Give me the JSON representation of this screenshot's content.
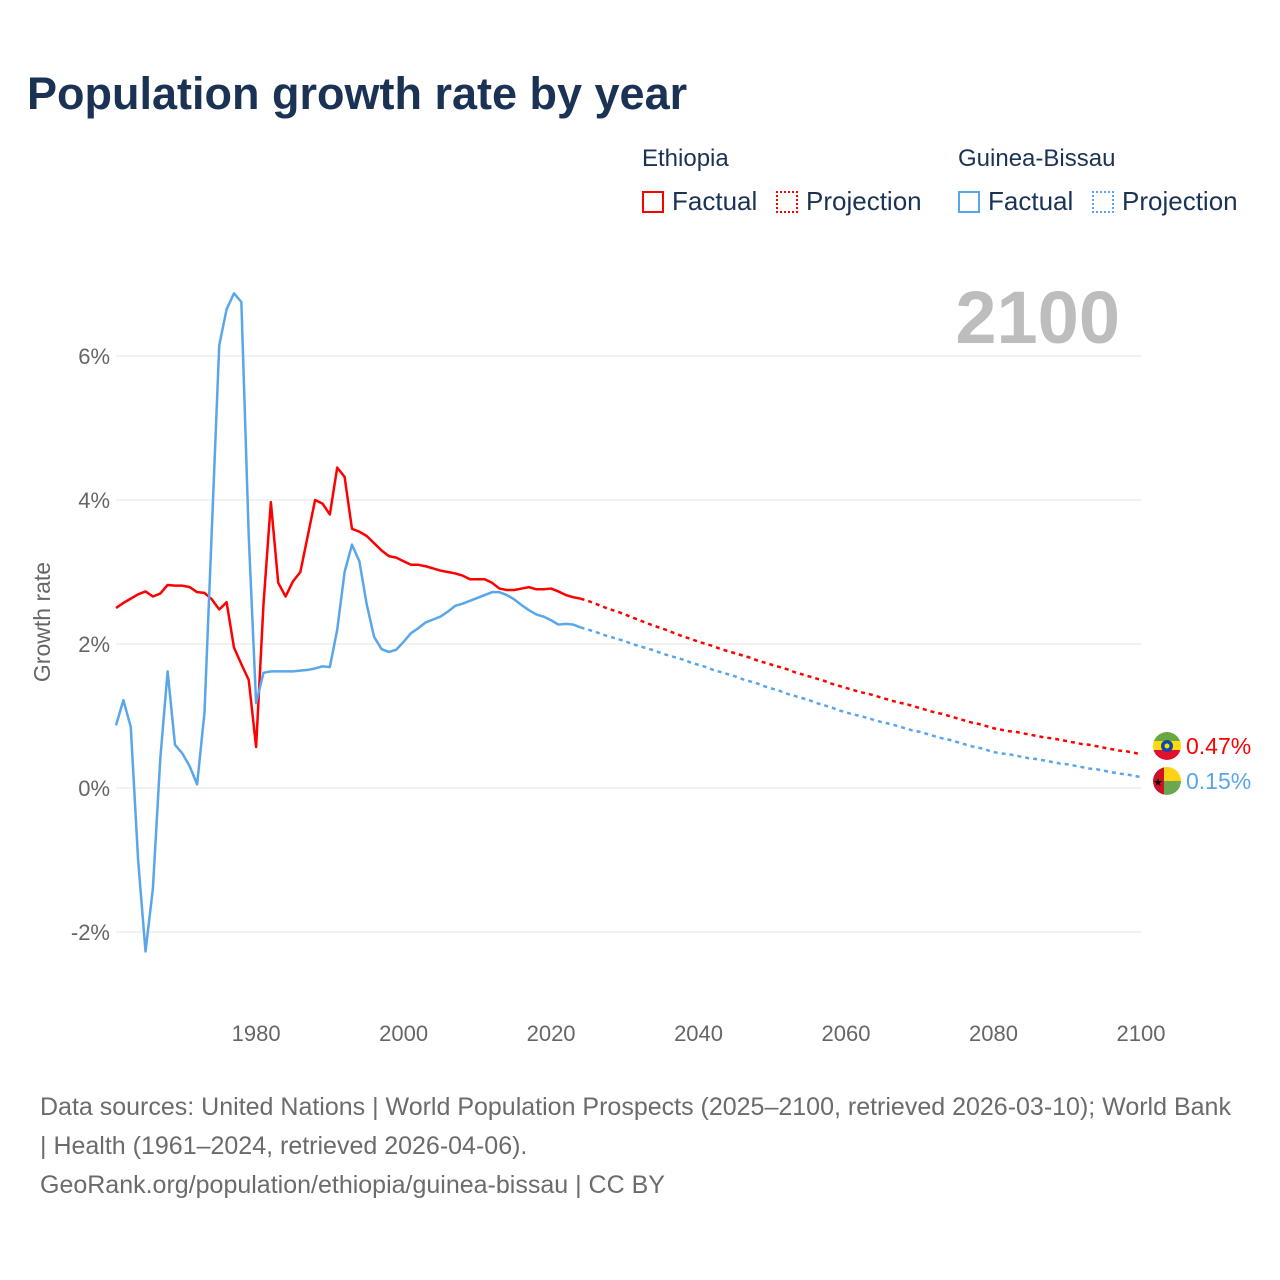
{
  "title": "Population growth rate by year",
  "legend": {
    "groups": [
      {
        "name": "Ethiopia",
        "color": "#ff0000",
        "factual": "Factual",
        "projection": "Projection"
      },
      {
        "name": "Guinea-Bissau",
        "color": "#5aa6ea",
        "factual": "Factual",
        "projection": "Projection"
      }
    ]
  },
  "current_year": "2100",
  "end_labels": {
    "ethiopia": "0.47%",
    "guinea_bissau": "0.15%"
  },
  "source": {
    "line1": "Data sources: United Nations | World Population Prospects (2025–2100, retrieved 2026-03-10); World Bank | Health (1961–2024, retrieved 2026-04-06).",
    "line2": "GeoRank.org/population/ethiopia/guinea-bissau | CC BY"
  },
  "chart_data": {
    "type": "line",
    "title": "Population growth rate by year",
    "ylabel": "Growth rate",
    "xlabel": "",
    "xlim": [
      1961,
      2100
    ],
    "ylim": [
      -2.9,
      7
    ],
    "y_ticks": [
      -2,
      0,
      2,
      4,
      6
    ],
    "y_tick_labels": [
      "-2%",
      "0%",
      "2%",
      "4%",
      "6%"
    ],
    "x_ticks": [
      1980,
      2000,
      2020,
      2040,
      2060,
      2080,
      2100
    ],
    "x_tick_labels": [
      "1980",
      "2000",
      "2020",
      "2040",
      "2060",
      "2080",
      "2100"
    ],
    "grid": true,
    "legend_position": "top-right",
    "series": [
      {
        "name": "Ethiopia Factual",
        "color": "#ff0000",
        "dashed": false,
        "start": 1961,
        "values": [
          2.5,
          2.57,
          2.63,
          2.69,
          2.73,
          2.66,
          2.7,
          2.82,
          2.81,
          2.81,
          2.79,
          2.72,
          2.71,
          2.62,
          2.48,
          2.58,
          1.95,
          1.72,
          1.5,
          0.57,
          2.55,
          3.97,
          2.85,
          2.66,
          2.87,
          3.0,
          3.5,
          4.0,
          3.95,
          3.8,
          4.45,
          4.32,
          3.6,
          3.56,
          3.5,
          3.4,
          3.3,
          3.22,
          3.2,
          3.15,
          3.1,
          3.1,
          3.08,
          3.05,
          3.02,
          3.0,
          2.98,
          2.95,
          2.9,
          2.9,
          2.9,
          2.85,
          2.77,
          2.75,
          2.75,
          2.77,
          2.79,
          2.76,
          2.76,
          2.77,
          2.73,
          2.68,
          2.65,
          2.63
        ]
      },
      {
        "name": "Ethiopia Projection",
        "color": "#ff0000",
        "dashed": true,
        "start": 2025,
        "values": [
          2.6,
          2.56,
          2.52,
          2.48,
          2.45,
          2.41,
          2.37,
          2.33,
          2.29,
          2.25,
          2.22,
          2.18,
          2.14,
          2.1,
          2.07,
          2.03,
          2.0,
          1.97,
          1.93,
          1.9,
          1.87,
          1.84,
          1.81,
          1.77,
          1.74,
          1.71,
          1.68,
          1.65,
          1.61,
          1.58,
          1.55,
          1.52,
          1.49,
          1.45,
          1.42,
          1.39,
          1.36,
          1.33,
          1.31,
          1.28,
          1.25,
          1.22,
          1.19,
          1.17,
          1.14,
          1.11,
          1.08,
          1.05,
          1.03,
          1.0,
          0.97,
          0.94,
          0.91,
          0.89,
          0.86,
          0.83,
          0.81,
          0.79,
          0.78,
          0.76,
          0.74,
          0.72,
          0.7,
          0.69,
          0.67,
          0.65,
          0.63,
          0.61,
          0.6,
          0.58,
          0.56,
          0.54,
          0.52,
          0.51,
          0.49,
          0.47
        ]
      },
      {
        "name": "Guinea-Bissau Factual",
        "color": "#5aa6ea",
        "dashed": false,
        "start": 1961,
        "values": [
          0.87,
          1.22,
          0.85,
          -1.0,
          -2.27,
          -1.4,
          0.4,
          1.62,
          0.6,
          0.48,
          0.3,
          0.05,
          1.05,
          3.6,
          6.15,
          6.65,
          6.87,
          6.75,
          3.5,
          1.18,
          1.6,
          1.62,
          1.62,
          1.62,
          1.62,
          1.63,
          1.64,
          1.66,
          1.69,
          1.68,
          2.2,
          3.0,
          3.38,
          3.15,
          2.55,
          2.1,
          1.93,
          1.89,
          1.92,
          2.03,
          2.15,
          2.22,
          2.3,
          2.34,
          2.38,
          2.45,
          2.53,
          2.56,
          2.6,
          2.64,
          2.68,
          2.72,
          2.72,
          2.68,
          2.62,
          2.54,
          2.47,
          2.41,
          2.38,
          2.33,
          2.27,
          2.28,
          2.27,
          2.23
        ]
      },
      {
        "name": "Guinea-Bissau Projection",
        "color": "#5aa6ea",
        "dashed": true,
        "start": 2025,
        "values": [
          2.2,
          2.17,
          2.13,
          2.1,
          2.07,
          2.04,
          2.0,
          1.97,
          1.94,
          1.91,
          1.87,
          1.84,
          1.81,
          1.78,
          1.74,
          1.71,
          1.68,
          1.64,
          1.61,
          1.58,
          1.55,
          1.51,
          1.48,
          1.45,
          1.41,
          1.38,
          1.35,
          1.31,
          1.28,
          1.25,
          1.22,
          1.18,
          1.15,
          1.12,
          1.08,
          1.05,
          1.02,
          1.0,
          0.97,
          0.94,
          0.91,
          0.89,
          0.86,
          0.83,
          0.8,
          0.78,
          0.75,
          0.72,
          0.69,
          0.67,
          0.64,
          0.61,
          0.58,
          0.56,
          0.53,
          0.5,
          0.48,
          0.47,
          0.45,
          0.43,
          0.41,
          0.4,
          0.38,
          0.36,
          0.34,
          0.33,
          0.31,
          0.29,
          0.27,
          0.26,
          0.24,
          0.22,
          0.2,
          0.19,
          0.17,
          0.15
        ]
      }
    ]
  }
}
